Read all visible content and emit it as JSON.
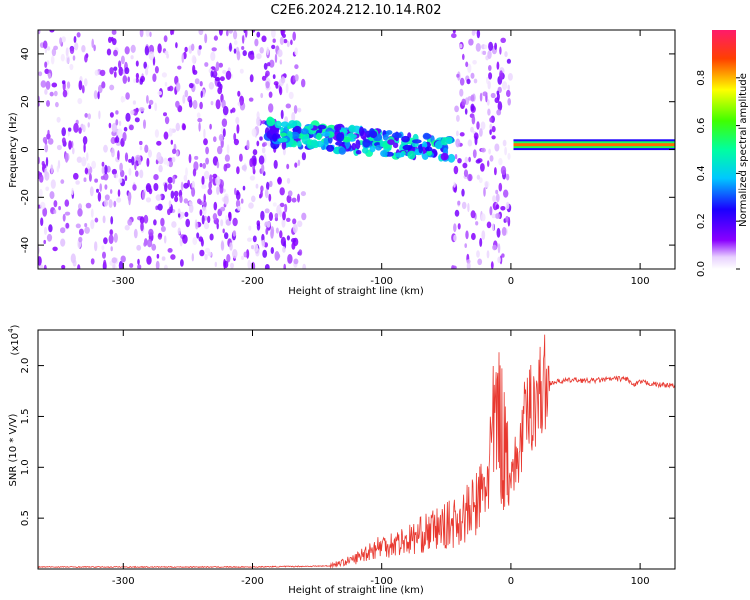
{
  "title": "C2E6.2024.212.10.14.R02",
  "colors": {
    "snr_line": "#e8382f",
    "axis": "#000000"
  },
  "chart_data": [
    {
      "type": "heatmap",
      "name": "spectrogram",
      "xlabel": "Height of straight line (km)",
      "ylabel": "Frequency (Hz)",
      "xlim": [
        -366,
        127
      ],
      "ylim": [
        -50,
        50
      ],
      "x_ticks": [
        -300,
        -200,
        -100,
        0,
        100
      ],
      "y_ticks": [
        -40,
        -20,
        0,
        20,
        40
      ],
      "colorbar": {
        "label": "Normalized spectral amplitude",
        "range": [
          0.0,
          1.0
        ],
        "ticks": [
          "0.0",
          "0.2",
          "0.4",
          "0.6",
          "0.8"
        ]
      },
      "regions": [
        {
          "x": [
            -366,
            -160
          ],
          "freq": [
            -50,
            50
          ],
          "amplitude": 0.1
        },
        {
          "x": [
            -190,
            -45
          ],
          "freq_start": 7,
          "freq_end": 0,
          "amplitude": 0.35
        },
        {
          "x": [
            -45,
            0
          ],
          "freq": [
            -50,
            50
          ],
          "amplitude": 0.1
        },
        {
          "x": [
            2,
            127
          ],
          "freq": [
            1,
            3
          ],
          "amplitude": 0.85
        }
      ]
    },
    {
      "type": "line",
      "name": "snr",
      "xlabel": "Height of straight line (km)",
      "ylabel": "SNR (10 * V/V)",
      "scale_label": "(x10^4)",
      "xlim": [
        -366,
        127
      ],
      "ylim": [
        0,
        2.35
      ],
      "x_ticks": [
        -300,
        -200,
        -100,
        0,
        100
      ],
      "y_ticks": [
        0.5,
        1.0,
        1.5,
        2.0
      ],
      "y_tick_labels": [
        "0.5",
        "1.0",
        "1.5",
        "2.0"
      ],
      "x": [
        -366,
        -300,
        -200,
        -140,
        -130,
        -120,
        -110,
        -100,
        -90,
        -80,
        -70,
        -60,
        -50,
        -40,
        -30,
        -20,
        -15,
        -10,
        -5,
        0,
        5,
        10,
        15,
        20,
        25,
        30,
        40,
        50,
        60,
        70,
        80,
        90,
        95,
        100,
        105,
        110,
        115,
        120,
        127
      ],
      "y": [
        0.02,
        0.02,
        0.02,
        0.03,
        0.05,
        0.08,
        0.14,
        0.18,
        0.2,
        0.22,
        0.26,
        0.3,
        0.33,
        0.38,
        0.45,
        0.6,
        0.95,
        1.2,
        0.9,
        0.95,
        1.05,
        1.4,
        1.6,
        1.7,
        1.78,
        1.83,
        1.85,
        1.86,
        1.85,
        1.86,
        1.87,
        1.87,
        1.8,
        1.84,
        1.83,
        1.82,
        1.81,
        1.81,
        1.8
      ]
    }
  ],
  "labels": {
    "xlabel_top": "Height of straight line (km)",
    "xlabel_bottom": "Height of straight line (km)",
    "ylabel_top": "Frequency (Hz)",
    "ylabel_bottom": "SNR (10 * V/V)",
    "colorbar_label": "Normalized spectral amplitude",
    "scale_prefix": "(x10",
    "scale_exp": "4",
    "scale_suffix": ")"
  }
}
